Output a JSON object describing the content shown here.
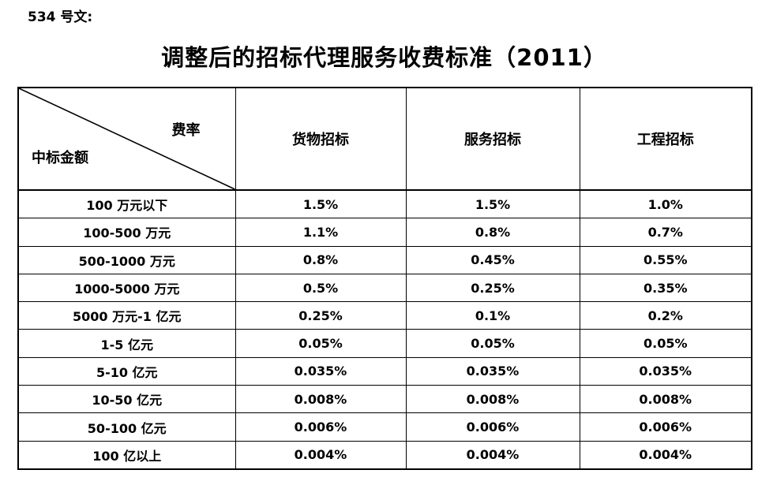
{
  "doc": {
    "label": "534 号文:"
  },
  "title": "调整后的招标代理服务收费标准（2011）",
  "table": {
    "corner": {
      "top_right": "费率",
      "bottom_left": "中标金额"
    },
    "columns": [
      "货物招标",
      "服务招标",
      "工程招标"
    ],
    "rows": [
      {
        "label": "100 万元以下",
        "values": [
          "1.5%",
          "1.5%",
          "1.0%"
        ]
      },
      {
        "label": "100-500 万元",
        "values": [
          "1.1%",
          "0.8%",
          "0.7%"
        ]
      },
      {
        "label": "500-1000 万元",
        "values": [
          "0.8%",
          "0.45%",
          "0.55%"
        ]
      },
      {
        "label": "1000-5000 万元",
        "values": [
          "0.5%",
          "0.25%",
          "0.35%"
        ]
      },
      {
        "label": "5000 万元-1 亿元",
        "values": [
          "0.25%",
          "0.1%",
          "0.2%"
        ]
      },
      {
        "label": "1-5 亿元",
        "values": [
          "0.05%",
          "0.05%",
          "0.05%"
        ]
      },
      {
        "label": "5-10 亿元",
        "values": [
          "0.035%",
          "0.035%",
          "0.035%"
        ]
      },
      {
        "label": "10-50 亿元",
        "values": [
          "0.008%",
          "0.008%",
          "0.008%"
        ]
      },
      {
        "label": "50-100 亿元",
        "values": [
          "0.006%",
          "0.006%",
          "0.006%"
        ]
      },
      {
        "label": "100 亿以上",
        "values": [
          "0.004%",
          "0.004%",
          "0.004%"
        ]
      }
    ]
  },
  "colors": {
    "text": "#000000",
    "border": "#000000",
    "background": "#ffffff"
  }
}
